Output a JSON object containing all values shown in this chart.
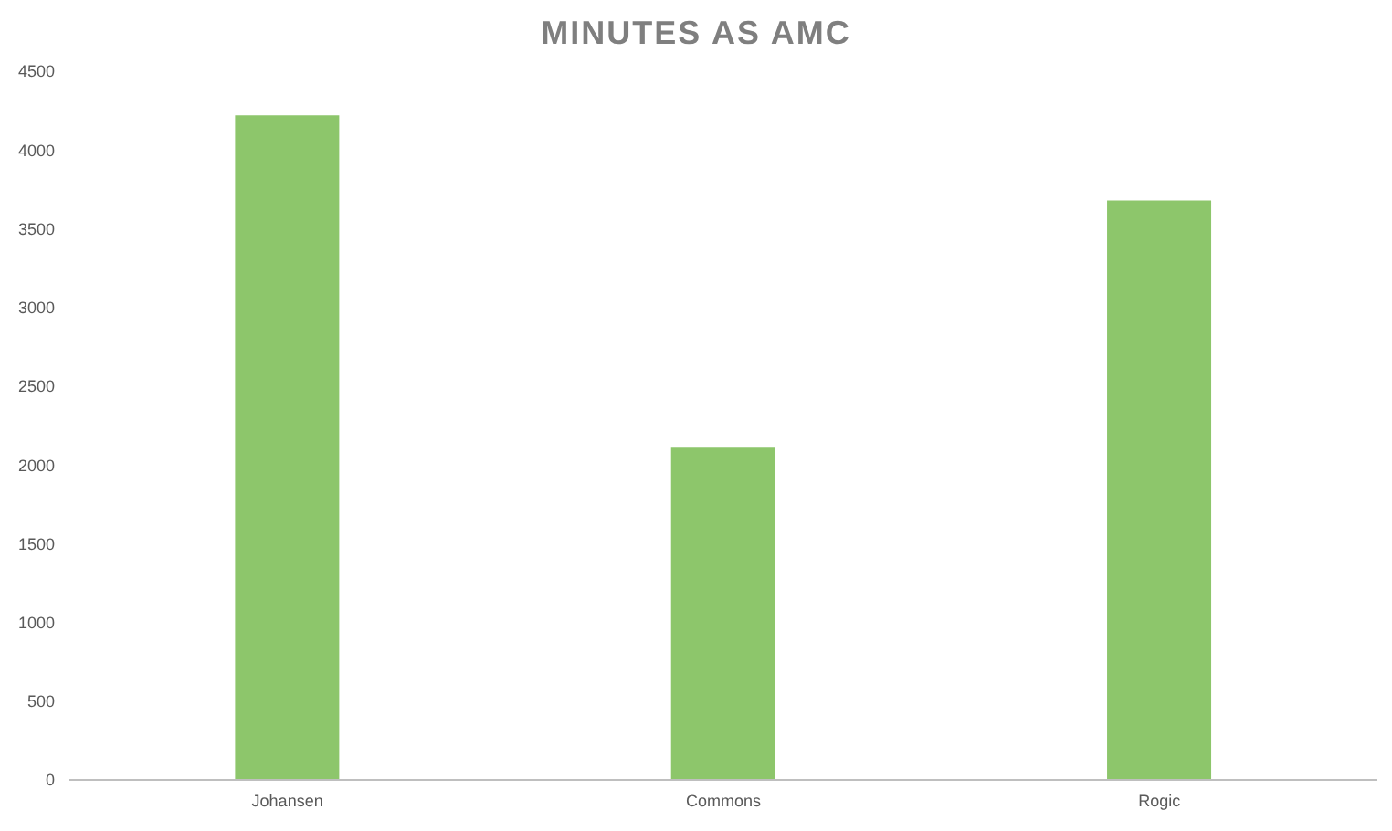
{
  "chart_data": {
    "type": "bar",
    "title": "MINUTES AS AMC",
    "categories": [
      "Johansen",
      "Commons",
      "Rogic"
    ],
    "values": [
      4220,
      2110,
      3680
    ],
    "color": "#8dc66b",
    "ylim": [
      0,
      4500
    ],
    "yticks": [
      0,
      500,
      1000,
      1500,
      2000,
      2500,
      3000,
      3500,
      4000,
      4500
    ],
    "grid": false
  }
}
